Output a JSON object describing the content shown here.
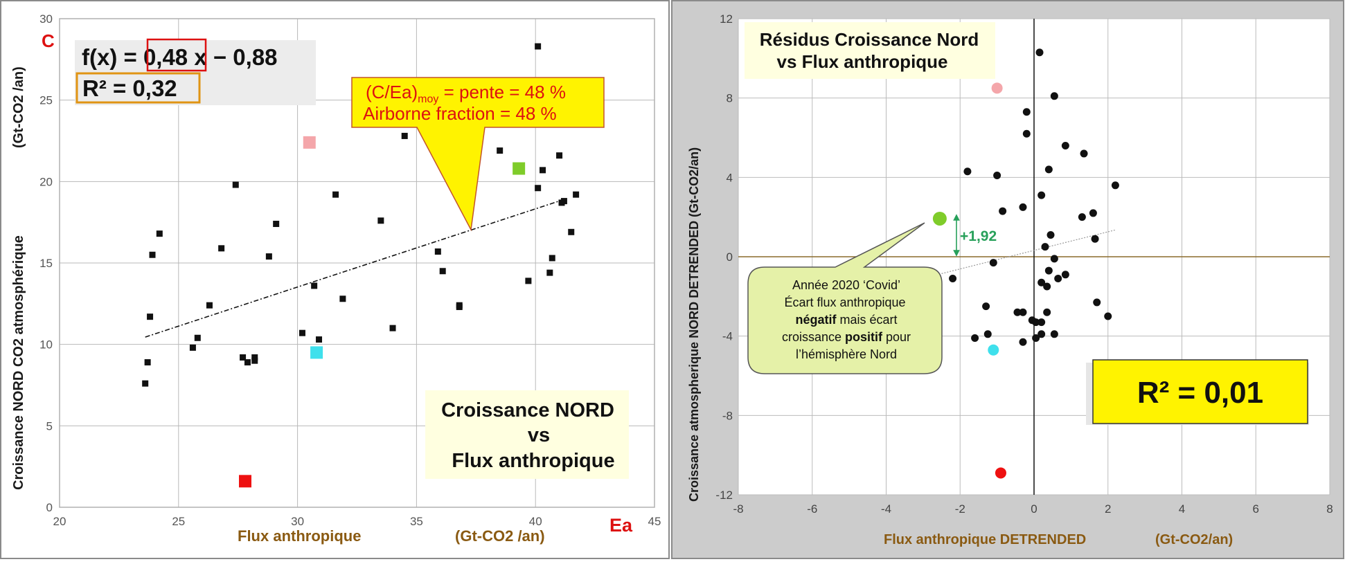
{
  "chart_data": [
    {
      "type": "scatter",
      "corner_label": "C",
      "ylabel": "Croissance NORD  CO2 atmosphérique",
      "ylabel_unit": "(Gt-CO2 /an)",
      "xlabel": "Flux anthropique",
      "xlabel_unit": "(Gt-CO2 /an)",
      "x_corner_label": "Ea",
      "xlim": [
        20,
        45
      ],
      "ylim": [
        0,
        30
      ],
      "xticks": [
        "20",
        "25",
        "30",
        "35",
        "40",
        "45"
      ],
      "yticks": [
        "0",
        "5",
        "10",
        "15",
        "20",
        "25",
        "30"
      ],
      "grid": true,
      "equation": {
        "prefix": "f(x) = ",
        "slope": "0,48",
        "suffix": " x − 0,88"
      },
      "r2": "R² = 0,32",
      "callout": {
        "line1_a": "(C/Ea)",
        "line1_sub": "moy",
        "line1_b": " = pente = 48 %",
        "line2": "Airborne fraction = 48 %"
      },
      "title_box": [
        "Croissance NORD",
        "vs",
        "Flux anthropique"
      ],
      "trendline": {
        "x": [
          23.6,
          41.2
        ],
        "y": [
          10.45,
          18.9
        ]
      },
      "points": [
        [
          23.6,
          7.6
        ],
        [
          23.7,
          8.9
        ],
        [
          23.8,
          11.7
        ],
        [
          23.9,
          15.5
        ],
        [
          24.2,
          16.8
        ],
        [
          25.6,
          9.8
        ],
        [
          25.8,
          10.4
        ],
        [
          26.3,
          12.4
        ],
        [
          26.8,
          15.9
        ],
        [
          27.4,
          19.8
        ],
        [
          27.7,
          9.2
        ],
        [
          27.9,
          8.9
        ],
        [
          28.2,
          9.2
        ],
        [
          28.2,
          9.0
        ],
        [
          28.8,
          15.4
        ],
        [
          29.1,
          17.4
        ],
        [
          30.2,
          10.7
        ],
        [
          30.7,
          13.6
        ],
        [
          30.9,
          10.3
        ],
        [
          31.6,
          19.2
        ],
        [
          31.9,
          12.8
        ],
        [
          33.5,
          17.6
        ],
        [
          34.0,
          11.0
        ],
        [
          34.5,
          22.8
        ],
        [
          35.9,
          15.7
        ],
        [
          36.1,
          14.5
        ],
        [
          36.8,
          12.3
        ],
        [
          36.8,
          12.4
        ],
        [
          38.5,
          21.9
        ],
        [
          39.7,
          13.9
        ],
        [
          40.1,
          28.3
        ],
        [
          40.1,
          19.6
        ],
        [
          40.3,
          20.7
        ],
        [
          40.6,
          14.4
        ],
        [
          40.7,
          15.3
        ],
        [
          41.0,
          21.6
        ],
        [
          41.1,
          18.7
        ],
        [
          41.2,
          18.8
        ],
        [
          41.5,
          16.9
        ],
        [
          41.7,
          19.2
        ]
      ],
      "highlights": [
        {
          "x": 30.5,
          "y": 22.4,
          "color": "#f4a6aa"
        },
        {
          "x": 39.3,
          "y": 20.8,
          "color": "#7fcc2a"
        },
        {
          "x": 30.8,
          "y": 9.5,
          "color": "#3fe0ec"
        },
        {
          "x": 27.8,
          "y": 1.6,
          "color": "#ee1111"
        }
      ]
    },
    {
      "type": "scatter",
      "title": [
        "Résidus Croissance Nord",
        "vs Flux anthropique"
      ],
      "ylabel": "Croissance atmospherique NORD DETRENDED (Gt-CO2/an)",
      "xlabel": "Flux anthropique DETRENDED",
      "xlabel_unit": "(Gt-CO2/an)",
      "xlim": [
        -8,
        8
      ],
      "ylim": [
        -12,
        12
      ],
      "xticks": [
        "-8",
        "-6",
        "-4",
        "-2",
        "0",
        "2",
        "4",
        "6",
        "8"
      ],
      "yticks": [
        "-12",
        "-8",
        "-4",
        "0",
        "4",
        "8",
        "12"
      ],
      "grid": true,
      "annotation_value": "+1,92",
      "bubble": {
        "line1": "Année 2020 ‘Covid’",
        "line2": "Écart flux anthropique",
        "line3_bold": "négatif",
        "line3_rest": " mais écart",
        "line4_a": "croissance ",
        "line4_bold": "positif",
        "line4_b": " pour",
        "line5": "l’hémisphère Nord"
      },
      "r2": "R² = 0,01",
      "trendline": {
        "x": [
          -2.5,
          2.2
        ],
        "y": [
          -0.85,
          1.35
        ]
      },
      "points": [
        [
          0.15,
          10.3
        ],
        [
          0.55,
          8.1
        ],
        [
          -0.2,
          7.3
        ],
        [
          -0.2,
          6.2
        ],
        [
          0.85,
          5.6
        ],
        [
          1.35,
          5.2
        ],
        [
          0.4,
          4.4
        ],
        [
          -1.8,
          4.3
        ],
        [
          -1.0,
          4.1
        ],
        [
          2.2,
          3.6
        ],
        [
          0.2,
          3.1
        ],
        [
          -0.3,
          2.5
        ],
        [
          -0.85,
          2.3
        ],
        [
          1.6,
          2.2
        ],
        [
          1.3,
          2.0
        ],
        [
          0.45,
          1.1
        ],
        [
          1.65,
          0.9
        ],
        [
          0.3,
          0.5
        ],
        [
          0.55,
          -0.1
        ],
        [
          -1.1,
          -0.3
        ],
        [
          0.4,
          -0.7
        ],
        [
          0.85,
          -0.9
        ],
        [
          0.65,
          -1.1
        ],
        [
          -2.2,
          -1.1
        ],
        [
          0.2,
          -1.3
        ],
        [
          0.35,
          -1.5
        ],
        [
          1.7,
          -2.3
        ],
        [
          -1.3,
          -2.5
        ],
        [
          -0.45,
          -2.8
        ],
        [
          -0.3,
          -2.8
        ],
        [
          0.35,
          -2.8
        ],
        [
          2.0,
          -3.0
        ],
        [
          -0.05,
          -3.2
        ],
        [
          0.05,
          -3.3
        ],
        [
          0.2,
          -3.3
        ],
        [
          -1.25,
          -3.9
        ],
        [
          0.2,
          -3.9
        ],
        [
          0.55,
          -3.9
        ],
        [
          -1.6,
          -4.1
        ],
        [
          0.05,
          -4.1
        ],
        [
          -0.3,
          -4.3
        ]
      ],
      "highlights": [
        {
          "x": -1.0,
          "y": 8.5,
          "color": "#f4a6aa",
          "r": 8
        },
        {
          "x": -2.55,
          "y": 1.92,
          "color": "#7fcc2a",
          "r": 10
        },
        {
          "x": -1.1,
          "y": -4.7,
          "color": "#3fe0ec",
          "r": 8
        },
        {
          "x": -0.9,
          "y": -10.9,
          "color": "#ee1111",
          "r": 8
        }
      ]
    }
  ]
}
